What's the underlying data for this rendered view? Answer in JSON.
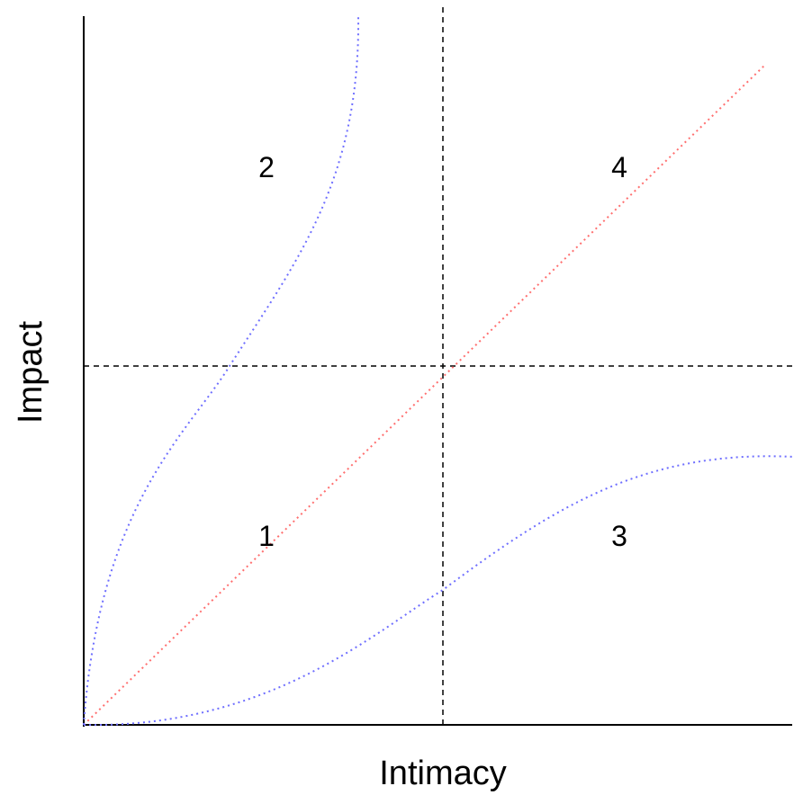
{
  "axes": {
    "x_label": "Intimacy",
    "y_label": "Impact"
  },
  "regions": [
    {
      "label": "1"
    },
    {
      "label": "2"
    },
    {
      "label": "3"
    },
    {
      "label": "4"
    }
  ],
  "colors": {
    "axis": "#000000",
    "divider": "#000000",
    "diagonal": "#ff6f6f",
    "curve": "#6f6fff",
    "background": "#ffffff"
  }
}
